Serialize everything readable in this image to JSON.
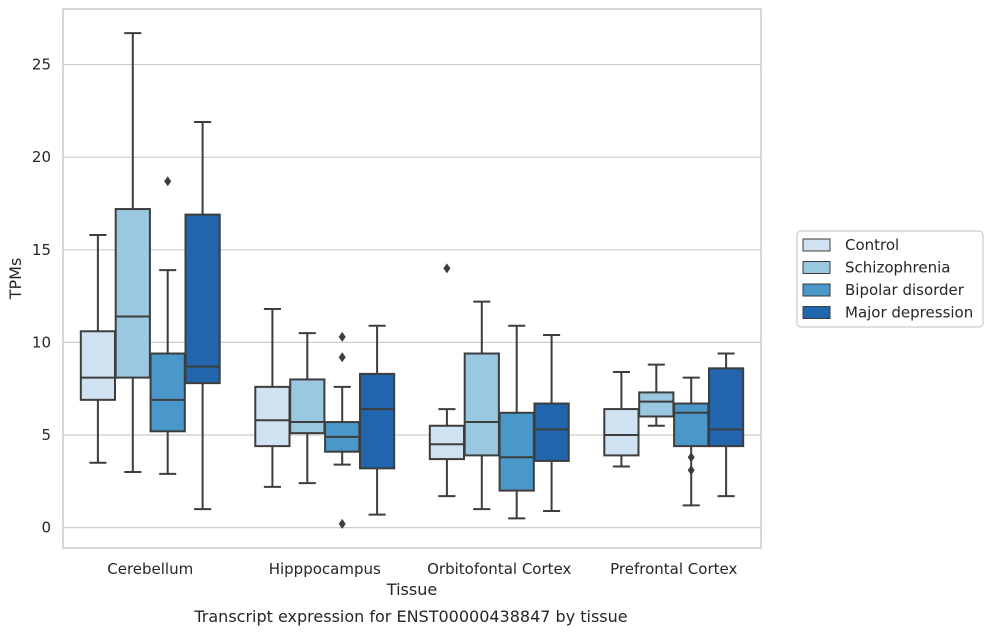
{
  "chart_data": {
    "type": "box",
    "caption": "Transcript expression for ENST00000438847 by tissue",
    "xlabel": "Tissue",
    "ylabel": "TPMs",
    "ylim": [
      -1.1,
      28
    ],
    "yticks": [
      0,
      5,
      10,
      15,
      20,
      25
    ],
    "grid": "horizontal",
    "legend_position": "right",
    "categories": [
      "Cerebellum",
      "Hipppocampus",
      "Orbitofontal Cortex",
      "Prefrontal Cortex"
    ],
    "series": [
      {
        "name": "Control",
        "color": "#d0e1f2",
        "boxes": [
          {
            "min": 3.5,
            "q1": 6.9,
            "median": 8.1,
            "q3": 10.6,
            "max": 15.8,
            "outliers": []
          },
          {
            "min": 2.2,
            "q1": 4.4,
            "median": 5.8,
            "q3": 7.6,
            "max": 11.8,
            "outliers": []
          },
          {
            "min": 1.7,
            "q1": 3.7,
            "median": 4.5,
            "q3": 5.5,
            "max": 6.4,
            "outliers": [
              14.0
            ]
          },
          {
            "min": 3.3,
            "q1": 3.9,
            "median": 5.0,
            "q3": 6.4,
            "max": 8.4,
            "outliers": []
          }
        ]
      },
      {
        "name": "Schizophrenia",
        "color": "#9ac8e0",
        "boxes": [
          {
            "min": 3.0,
            "q1": 8.1,
            "median": 11.4,
            "q3": 17.2,
            "max": 26.7,
            "outliers": []
          },
          {
            "min": 2.4,
            "q1": 5.1,
            "median": 5.7,
            "q3": 8.0,
            "max": 10.5,
            "outliers": []
          },
          {
            "min": 1.0,
            "q1": 3.9,
            "median": 5.7,
            "q3": 9.4,
            "max": 12.2,
            "outliers": []
          },
          {
            "min": 5.5,
            "q1": 6.0,
            "median": 6.8,
            "q3": 7.3,
            "max": 8.8,
            "outliers": []
          }
        ]
      },
      {
        "name": "Bipolar disorder",
        "color": "#4a98c9",
        "boxes": [
          {
            "min": 2.9,
            "q1": 5.2,
            "median": 6.9,
            "q3": 9.4,
            "max": 13.9,
            "outliers": [
              18.7
            ]
          },
          {
            "min": 3.4,
            "q1": 4.1,
            "median": 4.9,
            "q3": 5.7,
            "max": 7.6,
            "outliers": [
              10.3,
              9.2,
              0.2
            ]
          },
          {
            "min": 0.5,
            "q1": 2.0,
            "median": 3.8,
            "q3": 6.2,
            "max": 10.9,
            "outliers": []
          },
          {
            "min": 1.2,
            "q1": 4.4,
            "median": 6.2,
            "q3": 6.7,
            "max": 8.1,
            "outliers": [
              3.8,
              3.1
            ]
          }
        ]
      },
      {
        "name": "Major depression",
        "color": "#2166ac",
        "boxes": [
          {
            "min": 1.0,
            "q1": 7.8,
            "median": 8.7,
            "q3": 16.9,
            "max": 21.9,
            "outliers": []
          },
          {
            "min": 0.7,
            "q1": 3.2,
            "median": 6.4,
            "q3": 8.3,
            "max": 10.9,
            "outliers": []
          },
          {
            "min": 0.9,
            "q1": 3.6,
            "median": 5.3,
            "q3": 6.7,
            "max": 10.4,
            "outliers": []
          },
          {
            "min": 1.7,
            "q1": 4.4,
            "median": 5.3,
            "q3": 8.6,
            "max": 9.4,
            "outliers": []
          }
        ]
      }
    ]
  }
}
